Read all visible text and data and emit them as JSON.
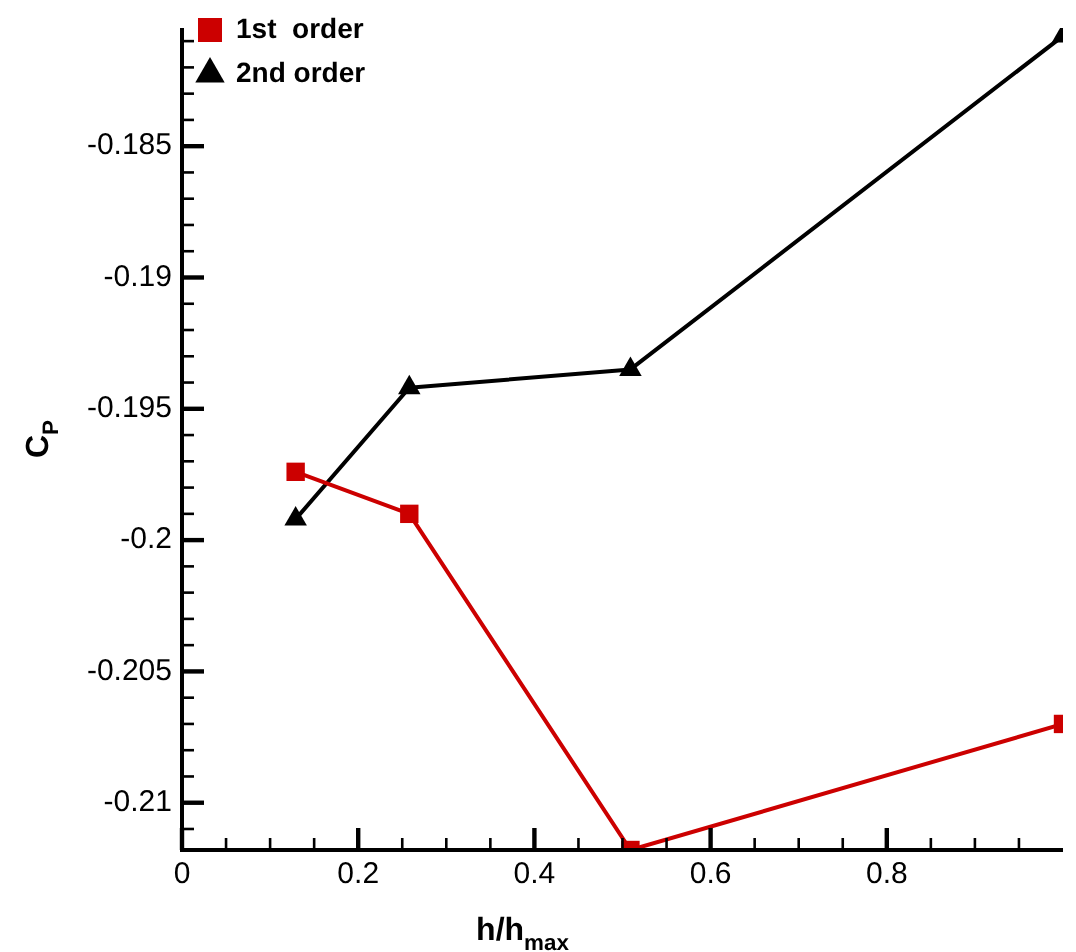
{
  "chart_data": {
    "type": "line",
    "xlabel": "h/h$_{max}$",
    "ylabel": "C$_{P}$",
    "xlim": [
      0,
      1
    ],
    "ylim": [
      -0.2118,
      -0.1805
    ],
    "xticks": [
      0,
      {
        "value": 0.05,
        "label": null
      },
      {
        "value": 0.1,
        "label": null
      },
      {
        "value": 0.15,
        "label": null
      },
      0.2,
      {
        "value": 0.25,
        "label": null
      },
      {
        "value": 0.3,
        "label": null
      },
      {
        "value": 0.35,
        "label": null
      },
      0.4,
      {
        "value": 0.45,
        "label": null
      },
      {
        "value": 0.5,
        "label": null
      },
      {
        "value": 0.55,
        "label": null
      },
      0.6,
      {
        "value": 0.65,
        "label": null
      },
      {
        "value": 0.7,
        "label": null
      },
      {
        "value": 0.75,
        "label": null
      },
      0.8,
      {
        "value": 0.85,
        "label": null
      },
      {
        "value": 0.9,
        "label": null
      },
      {
        "value": 0.95,
        "label": null
      }
    ],
    "yticks": [
      {
        "value": -0.211,
        "label": null
      },
      -0.21,
      {
        "value": -0.209,
        "label": null
      },
      {
        "value": -0.208,
        "label": null
      },
      {
        "value": -0.207,
        "label": null
      },
      {
        "value": -0.206,
        "label": null
      },
      -0.205,
      {
        "value": -0.204,
        "label": null
      },
      {
        "value": -0.203,
        "label": null
      },
      {
        "value": -0.202,
        "label": null
      },
      {
        "value": -0.201,
        "label": null
      },
      -0.2,
      {
        "value": -0.199,
        "label": null
      },
      {
        "value": -0.198,
        "label": null
      },
      {
        "value": -0.197,
        "label": null
      },
      {
        "value": -0.196,
        "label": null
      },
      -0.195,
      {
        "value": -0.194,
        "label": null
      },
      {
        "value": -0.193,
        "label": null
      },
      {
        "value": -0.192,
        "label": null
      },
      {
        "value": -0.191,
        "label": null
      },
      -0.19,
      {
        "value": -0.189,
        "label": null
      },
      {
        "value": -0.188,
        "label": null
      },
      {
        "value": -0.187,
        "label": null
      },
      {
        "value": -0.186,
        "label": null
      },
      -0.185,
      {
        "value": -0.184,
        "label": null
      },
      {
        "value": -0.183,
        "label": null
      },
      {
        "value": -0.182,
        "label": null
      },
      {
        "value": -0.181,
        "label": null
      }
    ],
    "grid": false,
    "legend": "top left",
    "line_style": "solid",
    "series": [
      {
        "name": "1st  order",
        "color": "#cc0000",
        "marker": "square",
        "x": [
          0.129,
          0.258,
          0.509,
          1
        ],
        "values": [
          -0.1974,
          -0.199,
          -0.2118,
          -0.207
        ]
      },
      {
        "name": "2nd order",
        "color": "#000000",
        "marker": "triangle",
        "x": [
          0.129,
          0.258,
          0.509,
          1
        ],
        "values": [
          -0.1992,
          -0.1942,
          -0.1935,
          -0.1808
        ]
      }
    ]
  }
}
